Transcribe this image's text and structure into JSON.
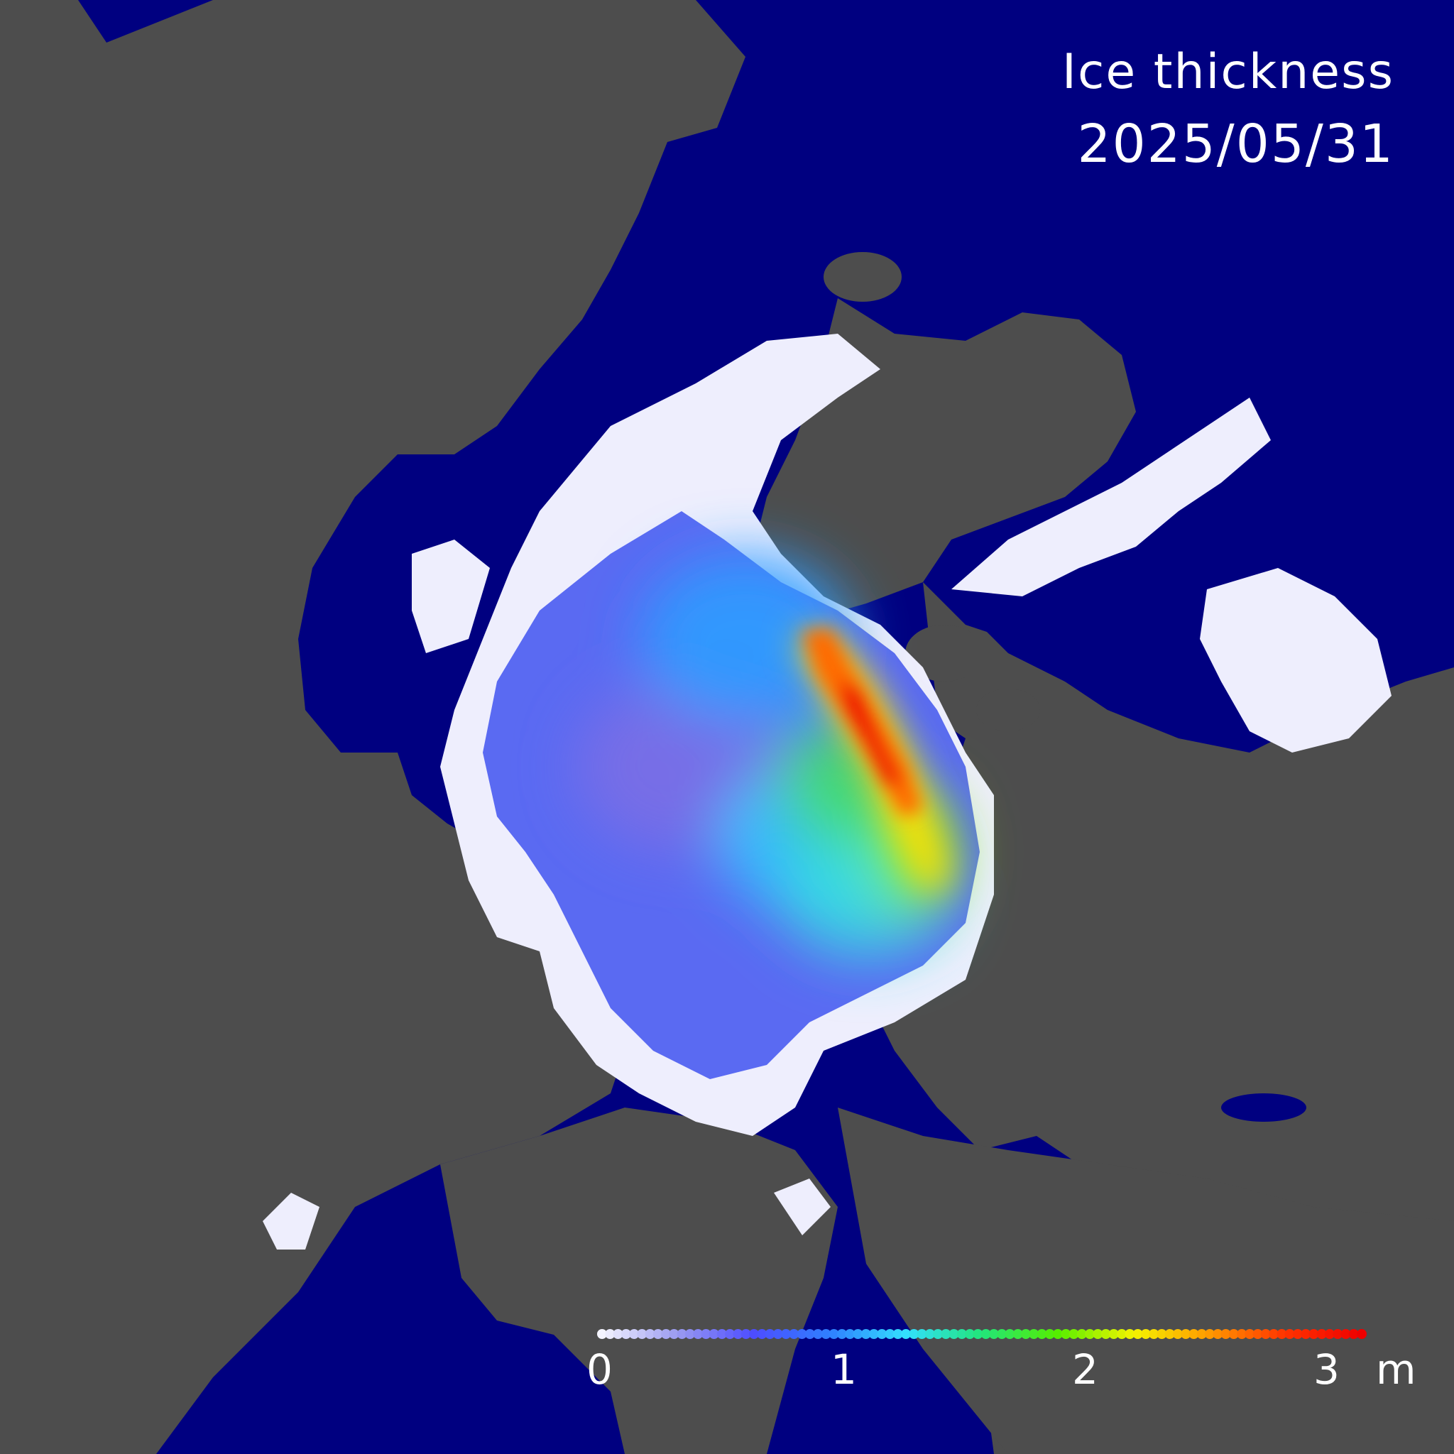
{
  "title": "Ice thickness",
  "date": "2025/05/31",
  "colorbar": {
    "ticks": [
      "0",
      "1",
      "2",
      "3"
    ],
    "unit": "m",
    "range": [
      0,
      3
    ],
    "colors": [
      "#f4f4ff",
      "#9a9af0",
      "#4d4dff",
      "#2f7fff",
      "#33dfff",
      "#22e57a",
      "#55ee00",
      "#f4f400",
      "#ff9900",
      "#ff3300",
      "#ee0000"
    ]
  },
  "palette": {
    "ocean": "#000080",
    "land": "#4d4d4d",
    "thin_ice": "#f0f0ff"
  }
}
